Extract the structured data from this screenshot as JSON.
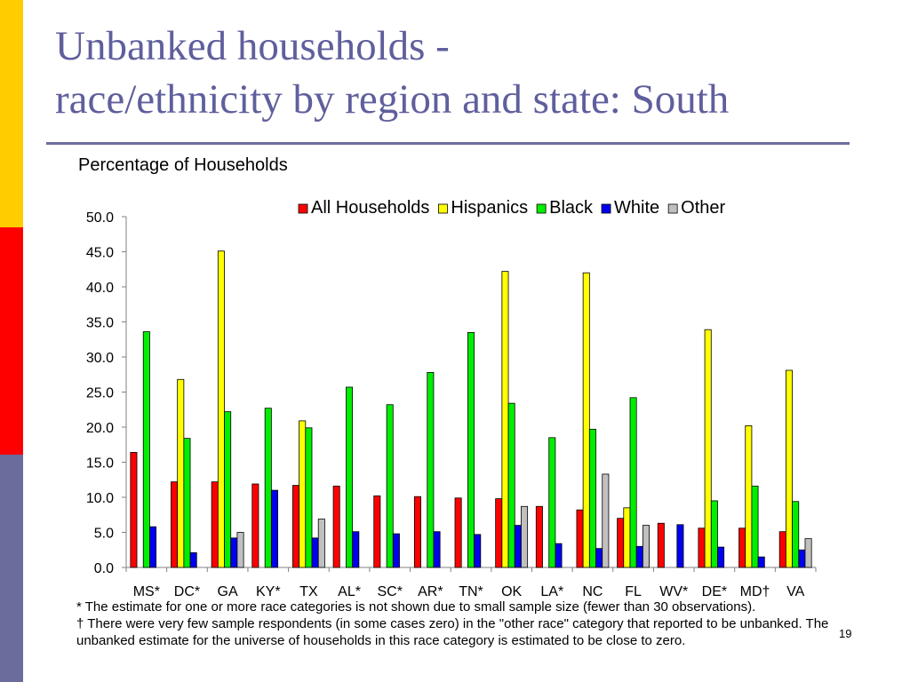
{
  "slide": {
    "title_line1": "Unbanked households -",
    "title_line2": "race/ethnicity by region and state: South",
    "subtitle": "Percentage of Households",
    "footnote_1": "* The estimate for one or more race categories is not shown due to small sample size (fewer than 30 observations).",
    "footnote_2": "† There were very few sample respondents (in some cases zero) in the \"other race\" category that reported to be unbanked. The unbanked estimate for the universe of households in this race category is estimated to be close to zero.",
    "page_number": "19",
    "side_colors": [
      "#ffcc00",
      "#ff0000",
      "#6b6b9c"
    ]
  },
  "chart_data": {
    "type": "bar",
    "categories": [
      "MS*",
      "DC*",
      "GA",
      "KY*",
      "TX",
      "AL*",
      "SC*",
      "AR*",
      "TN*",
      "OK",
      "LA*",
      "NC",
      "FL",
      "WV*",
      "DE*",
      "MD†",
      "VA"
    ],
    "series": [
      {
        "name": "All Households",
        "color": "#ff0000",
        "values": [
          16.4,
          12.2,
          12.2,
          11.9,
          11.7,
          11.6,
          10.2,
          10.1,
          9.9,
          9.8,
          8.7,
          8.2,
          7.0,
          6.3,
          5.6,
          5.6,
          5.1
        ]
      },
      {
        "name": "Hispanics",
        "color": "#ffff00",
        "values": [
          null,
          26.8,
          45.1,
          null,
          20.9,
          null,
          null,
          null,
          null,
          42.2,
          null,
          42.0,
          8.5,
          null,
          33.9,
          20.2,
          28.1
        ]
      },
      {
        "name": "Black",
        "color": "#00ee00",
        "values": [
          33.6,
          18.4,
          22.2,
          22.7,
          19.9,
          25.7,
          23.2,
          27.8,
          33.5,
          23.4,
          18.5,
          19.7,
          24.2,
          null,
          9.5,
          11.6,
          9.4
        ]
      },
      {
        "name": "White",
        "color": "#0000ee",
        "values": [
          5.8,
          2.1,
          4.2,
          11.0,
          4.2,
          5.1,
          4.8,
          5.1,
          4.7,
          6.0,
          3.4,
          2.7,
          3.0,
          6.1,
          2.9,
          1.5,
          2.5
        ]
      },
      {
        "name": "Other",
        "color": "#c0c0c0",
        "values": [
          null,
          null,
          5.0,
          null,
          6.9,
          null,
          null,
          null,
          null,
          8.7,
          null,
          13.3,
          6.0,
          null,
          null,
          null,
          4.1
        ]
      }
    ],
    "y_ticks": [
      "50.0",
      "45.0",
      "40.0",
      "35.0",
      "30.0",
      "25.0",
      "20.0",
      "15.0",
      "10.0",
      "5.0",
      "0.0"
    ],
    "ylim": [
      0,
      50
    ],
    "y_step": 5,
    "legend": "top-right",
    "grid": false
  }
}
